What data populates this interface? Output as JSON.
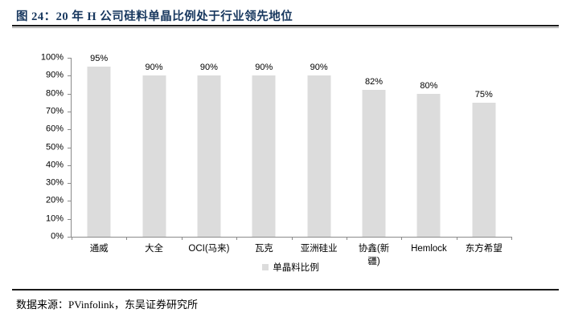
{
  "header": {
    "title": "图 24：20 年 H 公司硅料单晶比例处于行业领先地位"
  },
  "chart_data": {
    "type": "bar",
    "title": "20 年 H 公司硅料单晶比例处于行业领先地位",
    "categories": [
      "通威",
      "大全",
      "OCI(马来)",
      "瓦克",
      "亚洲硅业",
      "协鑫(新\n疆)",
      "Hemlock",
      "东方希望"
    ],
    "values": [
      95,
      90,
      90,
      90,
      90,
      82,
      80,
      75
    ],
    "value_label_suffix": "%",
    "yticks": [
      0,
      10,
      20,
      30,
      40,
      50,
      60,
      70,
      80,
      90,
      100
    ],
    "ytick_suffix": "%",
    "ylim": [
      0,
      100
    ],
    "grid": false,
    "legend": {
      "label": "单晶料比例",
      "position": "bottom"
    },
    "xlabel": "",
    "ylabel": ""
  },
  "footer": {
    "source": "数据来源：PVinfolink，东吴证券研究所"
  },
  "colors": {
    "title": "#17375e",
    "axis": "#8a8a8a",
    "bar": "#dcdcdc",
    "text": "#000000",
    "rule_heavy": "#1b1b1b",
    "rule_light": "#9a9a9a"
  }
}
